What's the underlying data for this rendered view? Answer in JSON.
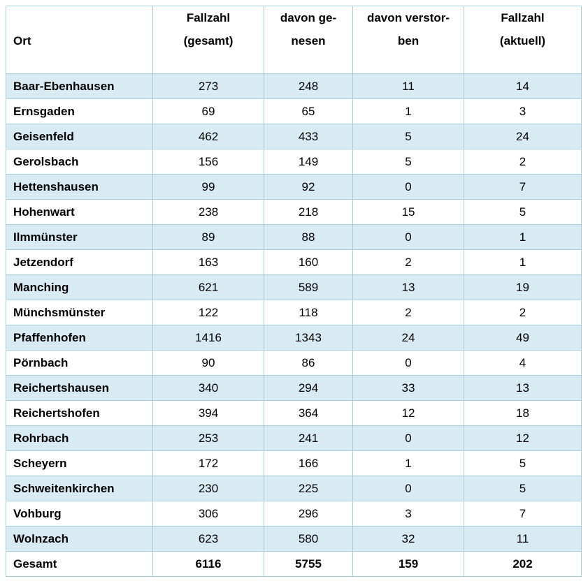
{
  "table": {
    "columns": [
      {
        "line1": "",
        "line2": "Ort"
      },
      {
        "line1": "Fallzahl",
        "line2": "(gesamt)"
      },
      {
        "line1": "davon ge-",
        "line2": "nesen"
      },
      {
        "line1": "davon verstor-",
        "line2": "ben"
      },
      {
        "line1": "Fallzahl",
        "line2": "(aktuell)"
      }
    ],
    "rows": [
      {
        "name": "Baar-Ebenhausen",
        "values": [
          273,
          248,
          11,
          14
        ],
        "is_total": false
      },
      {
        "name": "Ernsgaden",
        "values": [
          69,
          65,
          1,
          3
        ],
        "is_total": false
      },
      {
        "name": "Geisenfeld",
        "values": [
          462,
          433,
          5,
          24
        ],
        "is_total": false
      },
      {
        "name": "Gerolsbach",
        "values": [
          156,
          149,
          5,
          2
        ],
        "is_total": false
      },
      {
        "name": "Hettenshausen",
        "values": [
          99,
          92,
          0,
          7
        ],
        "is_total": false
      },
      {
        "name": "Hohenwart",
        "values": [
          238,
          218,
          15,
          5
        ],
        "is_total": false
      },
      {
        "name": "Ilmmünster",
        "values": [
          89,
          88,
          0,
          1
        ],
        "is_total": false
      },
      {
        "name": "Jetzendorf",
        "values": [
          163,
          160,
          2,
          1
        ],
        "is_total": false
      },
      {
        "name": "Manching",
        "values": [
          621,
          589,
          13,
          19
        ],
        "is_total": false
      },
      {
        "name": "Münchsmünster",
        "values": [
          122,
          118,
          2,
          2
        ],
        "is_total": false
      },
      {
        "name": "Pfaffenhofen",
        "values": [
          1416,
          1343,
          24,
          49
        ],
        "is_total": false
      },
      {
        "name": "Pörnbach",
        "values": [
          90,
          86,
          0,
          4
        ],
        "is_total": false
      },
      {
        "name": "Reichertshausen",
        "values": [
          340,
          294,
          33,
          13
        ],
        "is_total": false
      },
      {
        "name": "Reichertshofen",
        "values": [
          394,
          364,
          12,
          18
        ],
        "is_total": false
      },
      {
        "name": "Rohrbach",
        "values": [
          253,
          241,
          0,
          12
        ],
        "is_total": false
      },
      {
        "name": "Scheyern",
        "values": [
          172,
          166,
          1,
          5
        ],
        "is_total": false
      },
      {
        "name": "Schweitenkirchen",
        "values": [
          230,
          225,
          0,
          5
        ],
        "is_total": false
      },
      {
        "name": "Vohburg",
        "values": [
          306,
          296,
          3,
          7
        ],
        "is_total": false
      },
      {
        "name": "Wolnzach",
        "values": [
          623,
          580,
          32,
          11
        ],
        "is_total": false
      },
      {
        "name": "Gesamt",
        "values": [
          6116,
          5755,
          159,
          202
        ],
        "is_total": true
      }
    ]
  },
  "chart_data": {
    "type": "table",
    "columns": [
      "Ort",
      "Fallzahl (gesamt)",
      "davon genesen",
      "davon verstorben",
      "Fallzahl (aktuell)"
    ],
    "rows": [
      [
        "Baar-Ebenhausen",
        273,
        248,
        11,
        14
      ],
      [
        "Ernsgaden",
        69,
        65,
        1,
        3
      ],
      [
        "Geisenfeld",
        462,
        433,
        5,
        24
      ],
      [
        "Gerolsbach",
        156,
        149,
        5,
        2
      ],
      [
        "Hettenshausen",
        99,
        92,
        0,
        7
      ],
      [
        "Hohenwart",
        238,
        218,
        15,
        5
      ],
      [
        "Ilmmünster",
        89,
        88,
        0,
        1
      ],
      [
        "Jetzendorf",
        163,
        160,
        2,
        1
      ],
      [
        "Manching",
        621,
        589,
        13,
        19
      ],
      [
        "Münchsmünster",
        122,
        118,
        2,
        2
      ],
      [
        "Pfaffenhofen",
        1416,
        1343,
        24,
        49
      ],
      [
        "Pörnbach",
        90,
        86,
        0,
        4
      ],
      [
        "Reichertshausen",
        340,
        294,
        33,
        13
      ],
      [
        "Reichertshofen",
        394,
        364,
        12,
        18
      ],
      [
        "Rohrbach",
        253,
        241,
        0,
        12
      ],
      [
        "Scheyern",
        172,
        166,
        1,
        5
      ],
      [
        "Schweitenkirchen",
        230,
        225,
        0,
        5
      ],
      [
        "Vohburg",
        306,
        296,
        3,
        7
      ],
      [
        "Wolnzach",
        623,
        580,
        32,
        11
      ],
      [
        "Gesamt",
        6116,
        5755,
        159,
        202
      ]
    ]
  },
  "colors": {
    "row_shade": "#d9ebf2",
    "border": "#a6cfdd",
    "header_separator": "#b2c8d1",
    "text": "#000000"
  }
}
